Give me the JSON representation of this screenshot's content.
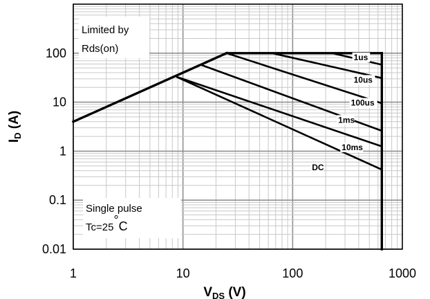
{
  "chart_data": {
    "type": "line",
    "title": "",
    "xlabel": {
      "main": "V",
      "sub": "DS",
      "unit": " (V)"
    },
    "ylabel": {
      "main": "I",
      "sub": "D",
      "unit": " (A)"
    },
    "x_scale": "log",
    "y_scale": "log",
    "xlim": [
      1,
      1000
    ],
    "ylim": [
      0.01,
      1000
    ],
    "x_ticks": [
      {
        "value": 1,
        "label": "1"
      },
      {
        "value": 10,
        "label": "10"
      },
      {
        "value": 100,
        "label": "100"
      },
      {
        "value": 1000,
        "label": "1000"
      }
    ],
    "y_ticks": [
      {
        "value": 0.01,
        "label": "0.01"
      },
      {
        "value": 0.1,
        "label": "0.1"
      },
      {
        "value": 1,
        "label": "1"
      },
      {
        "value": 10,
        "label": "10"
      },
      {
        "value": 100,
        "label": "100"
      }
    ],
    "grid": true,
    "annotations": {
      "limit_line1": "Limited by",
      "limit_line2": "Rds(on)",
      "pulse_line1": "Single pulse",
      "pulse_line2": "Tc=25",
      "pulse_degree": "°",
      "pulse_unit": "C"
    },
    "boundary": {
      "rds_on_limit": {
        "x": [
          1,
          25
        ],
        "y": [
          4,
          100
        ]
      },
      "current_limit": {
        "x": [
          25,
          650
        ],
        "y": [
          100,
          100
        ]
      },
      "voltage_limit": {
        "x": [
          650,
          650
        ],
        "y": [
          100,
          0.01
        ]
      }
    },
    "series": [
      {
        "name": "1us",
        "x": [
          230,
          650
        ],
        "y": [
          100,
          58
        ],
        "label_at": [
          360,
          72
        ]
      },
      {
        "name": "10us",
        "x": [
          65,
          650
        ],
        "y": [
          100,
          31
        ],
        "label_at": [
          360,
          25
        ]
      },
      {
        "name": "100us",
        "x": [
          25,
          650
        ],
        "y": [
          100,
          9.5
        ],
        "label_at": [
          340,
          8.5
        ]
      },
      {
        "name": "1ms",
        "x": [
          14.5,
          650
        ],
        "y": [
          58,
          2.6
        ],
        "label_at": [
          260,
          3.8
        ]
      },
      {
        "name": "10ms",
        "x": [
          8.7,
          650
        ],
        "y": [
          33,
          1.25
        ],
        "label_at": [
          280,
          1.05
        ]
      },
      {
        "name": "DC",
        "x": [
          8.7,
          650
        ],
        "y": [
          33,
          0.42
        ],
        "label_at": [
          150,
          0.41
        ]
      }
    ]
  }
}
